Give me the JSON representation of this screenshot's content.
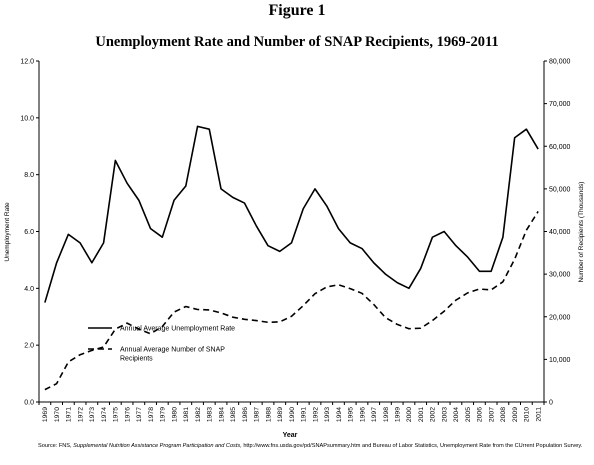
{
  "figure_label": "Figure 1",
  "source": {
    "prefix": "Source: FNS, ",
    "title": "Supplemental Nutrition Assistance Program Participation and Costs,",
    "suffix": " http://www.fns.usda.gov/pd/SNAPsummary.htm and Bureau of Labor Statistics, Unemployment Rate from the CUrrent Population Survey."
  },
  "colors": {
    "line": "#000000",
    "axis": "#000000",
    "background": "#ffffff"
  },
  "chart_data": {
    "type": "line",
    "title": "Unemployment Rate and Number of SNAP Recipients, 1969-2011",
    "xlabel": "Year",
    "ylabel": "Unemployment Rate",
    "y2label": "Number of Recipients (Thousands)",
    "ylim": [
      0,
      12
    ],
    "y2lim": [
      0,
      80000
    ],
    "yticks": [
      "0.0",
      "2.0",
      "4.0",
      "6.0",
      "8.0",
      "10.0",
      "12.0"
    ],
    "y2ticks": [
      "0",
      "10,000",
      "20,000",
      "30,000",
      "40,000",
      "50,000",
      "60,000",
      "70,000",
      "80,000"
    ],
    "grid": false,
    "legend_position": "lower-left",
    "categories": [
      "1969",
      "1970",
      "1971",
      "1972",
      "1973",
      "1974",
      "1975",
      "1976",
      "1977",
      "1978",
      "1979",
      "1980",
      "1981",
      "1982",
      "1983",
      "1984",
      "1985",
      "1986",
      "1987",
      "1988",
      "1989",
      "1990",
      "1991",
      "1992",
      "1993",
      "1994",
      "1995",
      "1996",
      "1997",
      "1998",
      "1999",
      "2000",
      "2001",
      "2002",
      "2003",
      "2004",
      "2005",
      "2006",
      "2007",
      "2008",
      "2009",
      "2010",
      "2011"
    ],
    "series": [
      {
        "name": "Annual Average Unemployment Rate",
        "axis": "left",
        "style": "solid",
        "values": [
          3.5,
          4.9,
          5.9,
          5.6,
          4.9,
          5.6,
          8.5,
          7.7,
          7.1,
          6.1,
          5.8,
          7.1,
          7.6,
          9.7,
          9.6,
          7.5,
          7.2,
          7.0,
          6.2,
          5.5,
          5.3,
          5.6,
          6.8,
          7.5,
          6.9,
          6.1,
          5.6,
          5.4,
          4.9,
          4.5,
          4.2,
          4.0,
          4.7,
          5.8,
          6.0,
          5.5,
          5.1,
          4.6,
          4.6,
          5.8,
          9.3,
          9.6,
          8.9
        ]
      },
      {
        "name": "Annual Average Number of SNAP Recipients",
        "axis": "right",
        "style": "dashed",
        "values": [
          2900,
          4300,
          9400,
          11100,
          12100,
          12900,
          17100,
          18500,
          17100,
          16000,
          17700,
          21100,
          22400,
          21700,
          21600,
          20900,
          19900,
          19400,
          19100,
          18700,
          18800,
          20100,
          22600,
          25400,
          27000,
          27500,
          26600,
          25500,
          22900,
          19800,
          18200,
          17200,
          17300,
          19100,
          21300,
          23900,
          25600,
          26500,
          26300,
          28200,
          33500,
          40300,
          44700
        ]
      }
    ]
  }
}
